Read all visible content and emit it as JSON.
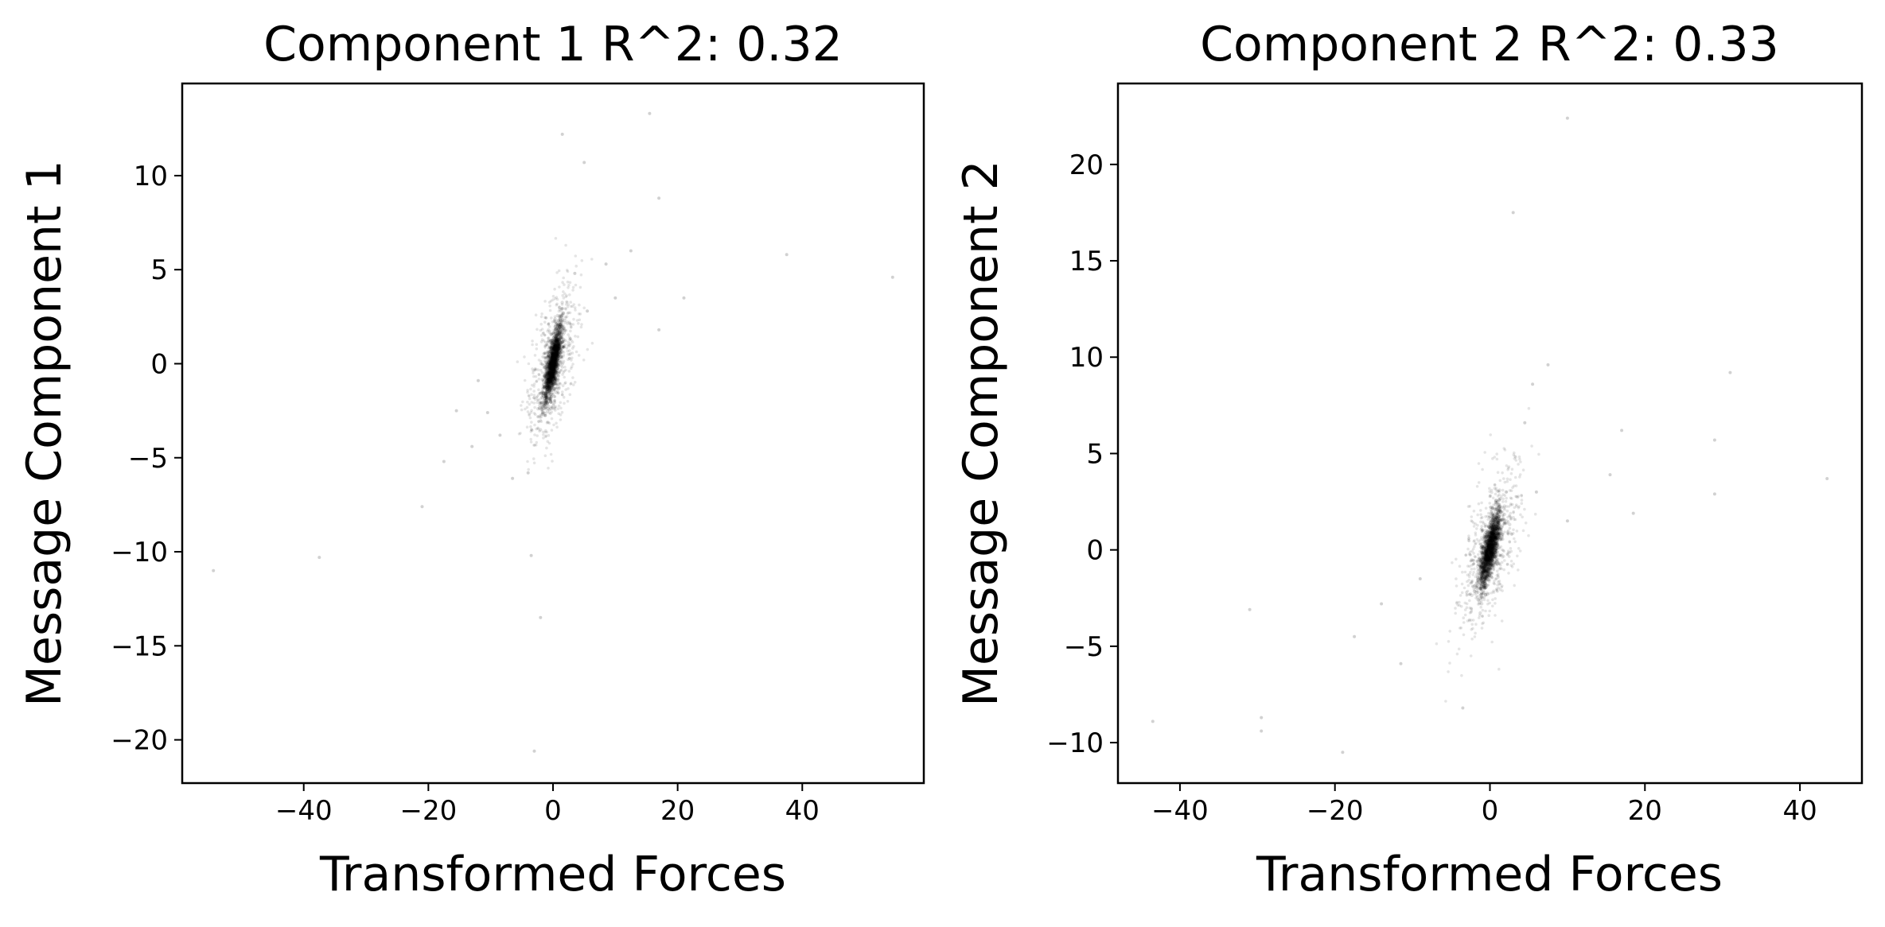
{
  "chart_data": [
    {
      "type": "scatter",
      "title": "Component 1 R^2:  0.32",
      "xlabel": "Transformed Forces",
      "ylabel": "Message Component 1",
      "xlim": [
        -59.5,
        59.5
      ],
      "ylim": [
        -22.3,
        14.9
      ],
      "xticks": [
        -40,
        -20,
        0,
        20,
        40
      ],
      "xtick_labels": [
        "−40",
        "−20",
        "0",
        "20",
        "40"
      ],
      "yticks": [
        -20,
        -15,
        -10,
        -5,
        0,
        5,
        10
      ],
      "ytick_labels": [
        "−20",
        "−15",
        "−10",
        "−5",
        "0",
        "5",
        "10"
      ],
      "grid": false,
      "marker_color": "#000000",
      "outliers": [
        {
          "x": -54.5,
          "y": -11.0
        },
        {
          "x": -37.5,
          "y": -10.3
        },
        {
          "x": -21.0,
          "y": -7.6
        },
        {
          "x": -17.5,
          "y": -5.2
        },
        {
          "x": -13.0,
          "y": -4.4
        },
        {
          "x": -15.5,
          "y": -2.5
        },
        {
          "x": -10.5,
          "y": -2.6
        },
        {
          "x": -8.5,
          "y": -3.8
        },
        {
          "x": -12.0,
          "y": -0.9
        },
        {
          "x": -6.5,
          "y": -6.1
        },
        {
          "x": -4.0,
          "y": -5.8
        },
        {
          "x": -3.5,
          "y": -10.2
        },
        {
          "x": -2.0,
          "y": -13.5
        },
        {
          "x": -3.0,
          "y": -20.6
        },
        {
          "x": 1.5,
          "y": 12.2
        },
        {
          "x": 5.0,
          "y": 10.7
        },
        {
          "x": 15.5,
          "y": 13.3
        },
        {
          "x": 17.0,
          "y": 8.8
        },
        {
          "x": 12.5,
          "y": 6.0
        },
        {
          "x": 8.5,
          "y": 5.3
        },
        {
          "x": 10.0,
          "y": 3.5
        },
        {
          "x": 21.0,
          "y": 3.5
        },
        {
          "x": 17.0,
          "y": 1.8
        },
        {
          "x": 37.5,
          "y": 5.8
        },
        {
          "x": 54.5,
          "y": 4.6
        },
        {
          "x": 3.5,
          "y": 4.8
        },
        {
          "x": 5.5,
          "y": 2.8
        }
      ]
    },
    {
      "type": "scatter",
      "title": "Component 2 R^2:  0.33",
      "xlabel": "Transformed Forces",
      "ylabel": "Message Component 2",
      "xlim": [
        -48.0,
        48.0
      ],
      "ylim": [
        -12.1,
        24.2
      ],
      "xticks": [
        -40,
        -20,
        0,
        20,
        40
      ],
      "xtick_labels": [
        "−40",
        "−20",
        "0",
        "20",
        "40"
      ],
      "yticks": [
        -10,
        -5,
        0,
        5,
        10,
        15,
        20
      ],
      "ytick_labels": [
        "−10",
        "−5",
        "0",
        "5",
        "10",
        "15",
        "20"
      ],
      "grid": false,
      "marker_color": "#000000",
      "outliers": [
        {
          "x": -43.5,
          "y": -8.9
        },
        {
          "x": -31.0,
          "y": -3.1
        },
        {
          "x": -29.5,
          "y": -8.7
        },
        {
          "x": -29.5,
          "y": -9.4
        },
        {
          "x": -19.0,
          "y": -10.5
        },
        {
          "x": -17.5,
          "y": -4.5
        },
        {
          "x": -14.0,
          "y": -2.8
        },
        {
          "x": -11.5,
          "y": -5.9
        },
        {
          "x": -9.0,
          "y": -1.5
        },
        {
          "x": -3.5,
          "y": -8.2
        },
        {
          "x": 10.0,
          "y": 22.4
        },
        {
          "x": 3.0,
          "y": 17.5
        },
        {
          "x": 7.5,
          "y": 9.6
        },
        {
          "x": 5.5,
          "y": 8.6
        },
        {
          "x": 4.5,
          "y": 6.6
        },
        {
          "x": 10.0,
          "y": 1.5
        },
        {
          "x": 15.5,
          "y": 3.9
        },
        {
          "x": 17.0,
          "y": 6.2
        },
        {
          "x": 18.5,
          "y": 1.9
        },
        {
          "x": 29.0,
          "y": 5.7
        },
        {
          "x": 31.0,
          "y": 9.2
        },
        {
          "x": 29.0,
          "y": 2.9
        },
        {
          "x": 43.5,
          "y": 3.7
        },
        {
          "x": 6.0,
          "y": 3.0
        }
      ]
    }
  ]
}
